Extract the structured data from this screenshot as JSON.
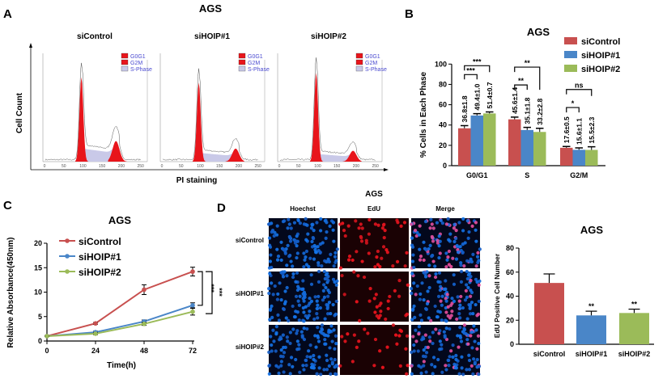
{
  "colors": {
    "siControl": "#c8504f",
    "siHOIP#1": "#4a86c8",
    "siHOIP#2": "#9bbb59",
    "histogram_fill": "#e8151b",
    "s_phase_fill": "#c9c9e8"
  },
  "chart_data": [
    {
      "panel": "A",
      "type": "histogram",
      "title": "AGS",
      "xlabel": "PI staining",
      "ylabel": "Cell Count",
      "x_ticks": [
        "0",
        "50",
        "100",
        "150",
        "200",
        "250"
      ],
      "xlim": [
        0,
        255
      ],
      "legend": [
        "G0G1",
        "G2M",
        "S-Phase"
      ],
      "legend_placement": "top-right",
      "subplots": [
        {
          "title": "siControl",
          "g0g1_peak_channel": 96,
          "g2m_peak_channel": 186,
          "g0g1_rel_height": 0.78,
          "g2m_rel_height": 0.19,
          "s_rel_level": 0.12
        },
        {
          "title": "siHOIP#1",
          "g0g1_peak_channel": 96,
          "g2m_peak_channel": 192,
          "g0g1_rel_height": 0.73,
          "g2m_rel_height": 0.12,
          "s_rel_level": 0.08
        },
        {
          "title": "siHOIP#2",
          "g0g1_peak_channel": 96,
          "g2m_peak_channel": 192,
          "g0g1_rel_height": 0.82,
          "g2m_rel_height": 0.1,
          "s_rel_level": 0.07
        }
      ]
    },
    {
      "panel": "B",
      "type": "bar",
      "title": "AGS",
      "ylabel": "% Cells in Each Phase",
      "ylim": [
        0,
        100
      ],
      "y_ticks": [
        "0",
        "20",
        "40",
        "60",
        "80",
        "100"
      ],
      "categories": [
        "G0/G1",
        "S",
        "G2/M"
      ],
      "legend_placement": "top-right",
      "series": [
        {
          "name": "siControl",
          "values": [
            36.8,
            45.6,
            17.6
          ],
          "errors": [
            1.8,
            1.4,
            0.5
          ],
          "labels": [
            "36.8±1.8",
            "45.6±1.4",
            "17.6±0.5"
          ]
        },
        {
          "name": "siHOIP#1",
          "values": [
            49.4,
            35.1,
            15.6
          ],
          "errors": [
            1.0,
            1.8,
            1.1
          ],
          "labels": [
            "49.4±1.0",
            "35.1±1.8",
            "15.6±1.1"
          ]
        },
        {
          "name": "siHOIP#2",
          "values": [
            51.4,
            33.2,
            15.5
          ],
          "errors": [
            0.7,
            2.8,
            2.3
          ],
          "labels": [
            "51.4±0.7",
            "33.2±2.8",
            "15.5±2.3"
          ]
        }
      ],
      "significance": [
        {
          "category": "G0/G1",
          "pair": "siControl-siHOIP#1",
          "mark": "***"
        },
        {
          "category": "G0/G1",
          "pair": "siControl-siHOIP#2",
          "mark": "***"
        },
        {
          "category": "S",
          "pair": "siControl-siHOIP#1",
          "mark": "**"
        },
        {
          "category": "S",
          "pair": "siControl-siHOIP#2",
          "mark": "**"
        },
        {
          "category": "G2/M",
          "pair": "siControl-siHOIP#1",
          "mark": "*"
        },
        {
          "category": "G2/M",
          "pair": "siControl-siHOIP#2",
          "mark": "ns"
        }
      ]
    },
    {
      "panel": "C",
      "type": "line",
      "title": "AGS",
      "xlabel": "Time(h)",
      "ylabel": "Relative Absorbance(450nm)",
      "x": [
        0,
        24,
        48,
        72
      ],
      "x_ticks": [
        "0",
        "24",
        "48",
        "72"
      ],
      "ylim": [
        0,
        20
      ],
      "y_ticks": [
        "0",
        "5",
        "10",
        "15",
        "20"
      ],
      "legend_placement": "top-left",
      "series": [
        {
          "name": "siControl",
          "values": [
            1.0,
            3.6,
            10.5,
            14.2
          ],
          "errors": [
            0.1,
            0.2,
            1.0,
            0.9
          ]
        },
        {
          "name": "siHOIP#1",
          "values": [
            1.0,
            1.8,
            4.0,
            7.3
          ],
          "errors": [
            0.1,
            0.2,
            0.3,
            0.5
          ]
        },
        {
          "name": "siHOIP#2",
          "values": [
            1.0,
            1.5,
            3.5,
            6.0
          ],
          "errors": [
            0.1,
            0.2,
            0.3,
            0.7
          ]
        }
      ],
      "significance": [
        "***",
        "***"
      ]
    },
    {
      "panel": "D",
      "type": "bar",
      "title": "AGS",
      "ylabel": "EdU Positive Cell Number",
      "ylim": [
        0,
        80
      ],
      "y_ticks": [
        "0",
        "20",
        "40",
        "60",
        "80"
      ],
      "categories": [
        "siControl",
        "siHOIP#1",
        "siHOIP#2"
      ],
      "values": [
        51,
        24,
        26
      ],
      "errors": [
        7.5,
        3.5,
        3.2
      ],
      "significance": [
        "",
        "**",
        "**"
      ]
    }
  ],
  "microscopy": {
    "title": "AGS",
    "columns": [
      "Hoechst",
      "EdU",
      "Merge"
    ],
    "rows": [
      "siControl",
      "siHOIP#1",
      "siHOIP#2"
    ]
  },
  "panel_letters": [
    "A",
    "B",
    "C",
    "D"
  ]
}
